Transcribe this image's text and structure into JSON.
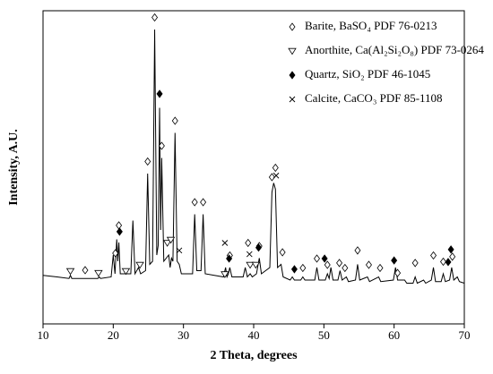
{
  "chart_data": {
    "type": "line",
    "x_label": "2 Theta, degrees",
    "y_label": "Intensity, A.U.",
    "xlim": [
      10,
      70
    ],
    "xticks": [
      10,
      20,
      30,
      40,
      50,
      60,
      70
    ],
    "ylim": [
      0,
      100
    ],
    "color": "#000000",
    "x": [
      10,
      12,
      13.7,
      13.9,
      14.1,
      16,
      17.8,
      18,
      18.2,
      19.7,
      20,
      20.25,
      20.5,
      20.65,
      20.8,
      21,
      22.5,
      22.8,
      23.1,
      23.6,
      23.9,
      24.6,
      24.9,
      25.2,
      25.6,
      25.9,
      26.2,
      26.4,
      26.6,
      26.75,
      26.9,
      27.2,
      27.9,
      28.1,
      28.3,
      28.5,
      28.8,
      29.1,
      29.4,
      29.7,
      31.3,
      31.6,
      31.9,
      32.5,
      32.8,
      33.1,
      35.7,
      36,
      36.2,
      36.4,
      36.6,
      36.9,
      38.5,
      38.8,
      39.1,
      39.5,
      39.8,
      40.4,
      40.8,
      41.1,
      42.3,
      42.6,
      42.85,
      43.1,
      43.4,
      43.9,
      44.2,
      45.2,
      45.5,
      45.8,
      46.7,
      47,
      47.3,
      48.7,
      49,
      49.3,
      50.2,
      50.5,
      50.75,
      51,
      51.3,
      52,
      52.3,
      52.6,
      53.2,
      53.5,
      54.5,
      54.8,
      55.1,
      56.2,
      56.5,
      57.8,
      58.1,
      59.9,
      60.2,
      60.5,
      61.5,
      61.8,
      62.7,
      63,
      63.3,
      64.2,
      64.5,
      65.3,
      65.6,
      65.9,
      66.7,
      67,
      67.3,
      67.9,
      68.2,
      68.5,
      69,
      69.3,
      70
    ],
    "values": [
      15.5,
      15,
      14.5,
      15.5,
      14.5,
      14.5,
      14.5,
      15,
      14.5,
      15,
      22,
      16,
      27,
      20,
      26,
      16,
      16,
      33,
      16,
      18,
      16,
      17,
      48,
      19,
      20,
      94,
      22,
      25,
      69,
      30,
      53,
      20,
      22,
      18,
      21,
      20,
      61,
      20,
      19,
      16,
      16,
      35,
      17,
      17,
      35,
      16,
      15,
      18,
      15,
      16,
      18,
      15,
      15,
      18,
      15,
      16,
      15,
      16,
      21,
      16,
      18,
      42,
      45,
      43,
      18,
      19,
      15,
      14,
      15,
      14,
      14,
      15,
      14,
      14,
      18,
      14,
      14,
      16,
      14.5,
      18,
      14,
      14,
      17,
      14,
      15,
      13.5,
      14,
      19,
      14,
      15,
      13.5,
      15,
      13.5,
      14,
      18,
      14,
      14,
      13,
      13,
      15,
      13,
      14,
      13,
      14,
      18,
      13.5,
      13.5,
      16,
      13.5,
      14,
      18,
      14,
      15,
      13.5,
      13
    ],
    "series": [
      {
        "name": "Barite, BaSO₄ PDF 76-0213",
        "symbol": "open-diamond",
        "x": [
          16,
          20.3,
          20.8,
          24.9,
          25.9,
          26.9,
          28.8,
          31.6,
          32.8,
          36.6,
          39.2,
          40.8,
          42.6,
          43.1,
          44.1,
          47,
          49,
          50.5,
          52.2,
          53,
          54.8,
          56.4,
          58,
          60.5,
          63,
          65.6,
          67,
          68.3
        ],
        "values": [
          16.3,
          21.7,
          30.6,
          51,
          97,
          56,
          64,
          38,
          38,
          21,
          25,
          24,
          46,
          49,
          22,
          17,
          20,
          18,
          18.6,
          17,
          22.6,
          18,
          17,
          15.4,
          18.6,
          21,
          19,
          20.6
        ]
      },
      {
        "name": "Anorthite, Ca(Al₂Si₂O₈) PDF 73-0264",
        "symbol": "open-triangle-down",
        "x": [
          13.9,
          17.9,
          21.8,
          23.8,
          27.7,
          28.2,
          35.9,
          39.5,
          40.3
        ],
        "values": [
          16,
          15.4,
          16,
          18,
          25,
          26,
          15,
          18,
          18
        ]
      },
      {
        "name": "Quartz, SiO₂ PDF 46-1045",
        "symbol": "filled-diamond",
        "x": [
          20.9,
          26.6,
          36.5,
          40.7,
          45.8,
          50.1,
          60,
          67.7,
          68.1
        ],
        "values": [
          28.6,
          72.6,
          20,
          23.5,
          16.6,
          20,
          19.4,
          18.9,
          22.9
        ]
      },
      {
        "name": "Calcite, CaCO₃ PDF 85-1108",
        "symbol": "cross",
        "x": [
          29.4,
          35.9,
          39.4,
          43.2
        ],
        "values": [
          22.6,
          25,
          21.4,
          46.5
        ]
      }
    ]
  }
}
